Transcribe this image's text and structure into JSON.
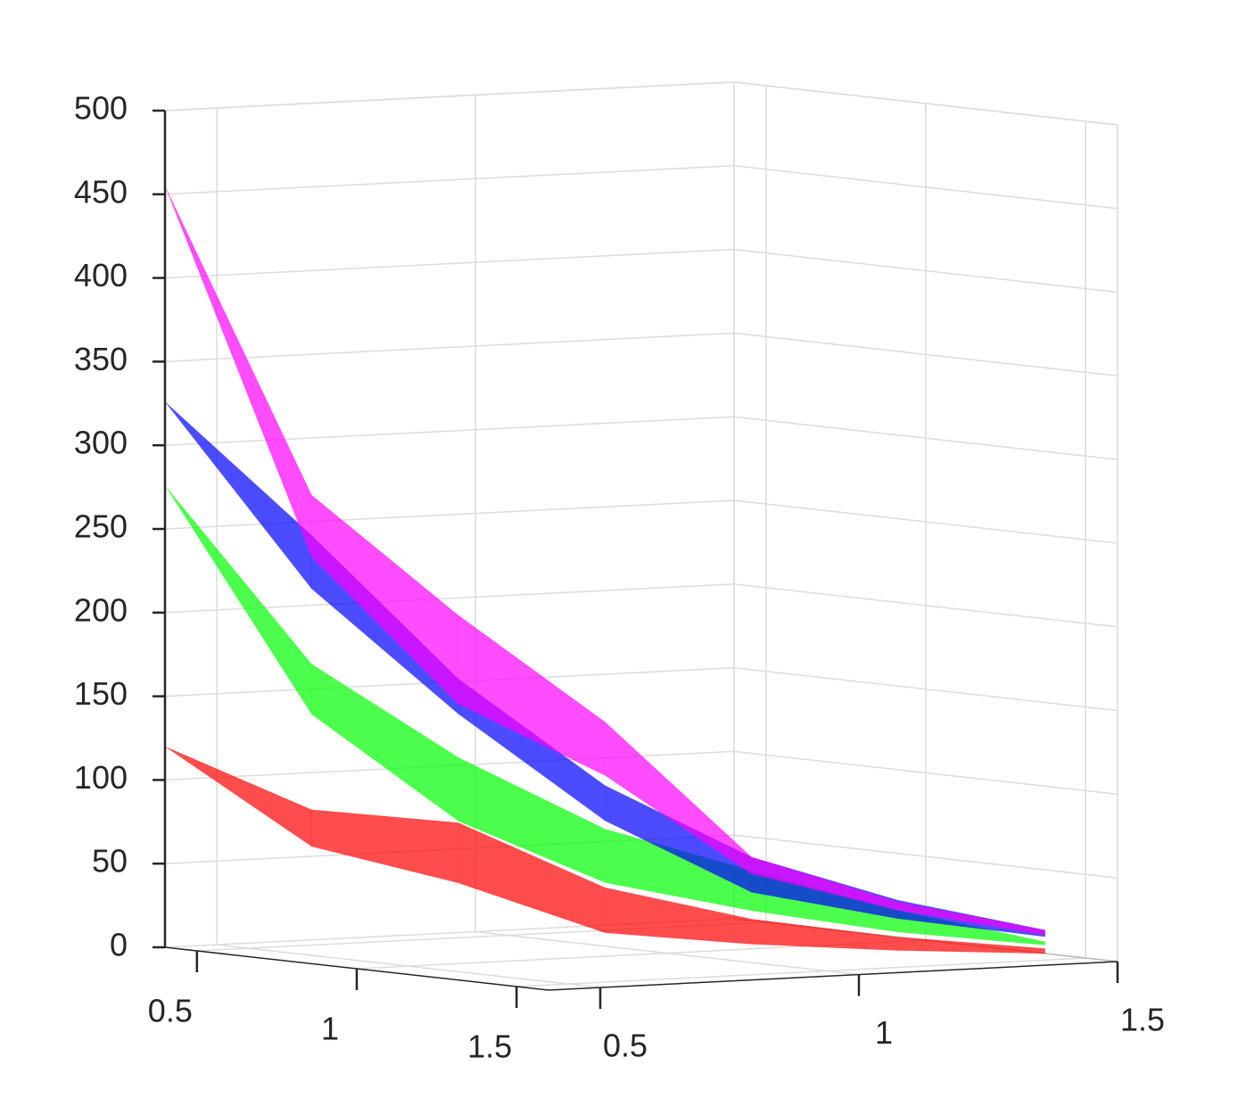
{
  "chart_data": {
    "type": "band3d",
    "xlim": [
      0.4,
      1.6
    ],
    "ylim": [
      0.4,
      1.5
    ],
    "zlim": [
      0,
      500
    ],
    "xticks": [
      0.5,
      1,
      1.5
    ],
    "yticks": [
      0.5,
      1,
      1.5
    ],
    "zticks": [
      0,
      50,
      100,
      150,
      200,
      250,
      300,
      350,
      400,
      450,
      500
    ],
    "grid": true,
    "alpha": 0.7,
    "series": [
      {
        "color": "#ff0000",
        "x": [
          0.4,
          0.6,
          0.8,
          1.0,
          1.2,
          1.4,
          1.6
        ],
        "y": [
          0.4,
          0.56,
          0.72,
          0.88,
          1.04,
          1.2,
          1.36
        ],
        "z_lower": [
          120,
          62,
          42,
          14,
          9,
          7,
          7
        ],
        "z_upper": [
          120,
          84,
          78,
          41,
          24,
          15,
          10
        ]
      },
      {
        "color": "#00ff00",
        "x": [
          0.4,
          0.6,
          0.8,
          1.0,
          1.2,
          1.4,
          1.6
        ],
        "y": [
          0.4,
          0.56,
          0.72,
          0.88,
          1.04,
          1.2,
          1.36
        ],
        "z_lower": [
          276,
          141,
          79,
          44,
          29,
          18,
          12
        ],
        "z_upper": [
          276,
          171,
          117,
          76,
          53,
          31,
          14
        ]
      },
      {
        "color": "#0000ff",
        "x": [
          0.4,
          0.6,
          0.8,
          1.0,
          1.2,
          1.4,
          1.6
        ],
        "y": [
          0.4,
          0.56,
          0.72,
          0.88,
          1.04,
          1.2,
          1.36
        ],
        "z_lower": [
          326,
          216,
          143,
          81,
          40,
          26,
          17
        ],
        "z_upper": [
          326,
          248,
          164,
          102,
          61,
          37,
          21
        ]
      },
      {
        "color": "#ff00ff",
        "x": [
          0.4,
          0.6,
          0.8,
          1.0,
          1.2,
          1.4,
          1.6
        ],
        "y": [
          0.4,
          0.56,
          0.72,
          0.88,
          1.04,
          1.2,
          1.36
        ],
        "z_lower": [
          455,
          235,
          149,
          108,
          51,
          31,
          18
        ],
        "z_upper": [
          455,
          272,
          202,
          140,
          61,
          36,
          21
        ]
      }
    ]
  }
}
